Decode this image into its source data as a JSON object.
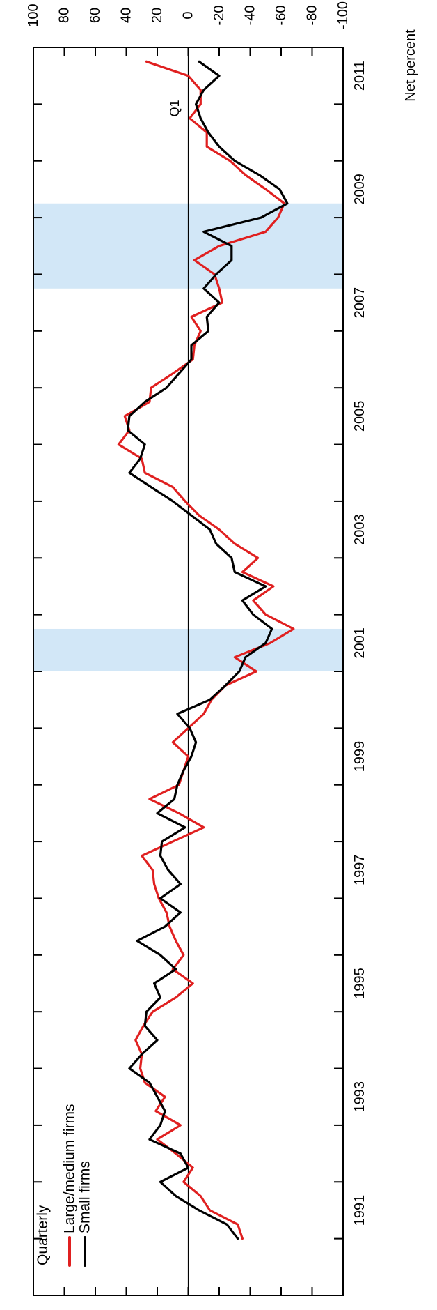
{
  "chart_data": {
    "type": "line",
    "ylabel": "Net percent",
    "ylim": [
      -100,
      100
    ],
    "yticks": [
      100,
      80,
      60,
      40,
      20,
      0,
      -20,
      -40,
      -60,
      -80,
      -100
    ],
    "ytick_labels": [
      "100",
      "80",
      "60",
      "40",
      "20",
      "0",
      "-20",
      "-40",
      "-60",
      "-80",
      "-100"
    ],
    "xlim": [
      1990.0,
      2012.0
    ],
    "xtick_labels": [
      "1991",
      "1993",
      "1995",
      "1997",
      "1999",
      "2001",
      "2003",
      "2005",
      "2007",
      "2009",
      "2011"
    ],
    "legend": {
      "title": "Quarterly",
      "position": "top-left",
      "entries": [
        "Large/medium firms",
        "Small firms"
      ]
    },
    "annotations": [
      {
        "text": "Q1",
        "x": 2011.0,
        "y": -3
      }
    ],
    "recessions": [
      [
        2001.0,
        2001.75
      ],
      [
        2007.75,
        2009.25
      ]
    ],
    "series": [
      {
        "name": "Large/medium firms",
        "color": "#e02020",
        "points": [
          [
            1991.0,
            -35
          ],
          [
            1991.25,
            -32
          ],
          [
            1991.5,
            -14
          ],
          [
            1991.75,
            -8
          ],
          [
            1992.0,
            3
          ],
          [
            1992.25,
            -3
          ],
          [
            1992.5,
            8
          ],
          [
            1992.75,
            20
          ],
          [
            1993.0,
            5
          ],
          [
            1993.25,
            21
          ],
          [
            1993.5,
            15
          ],
          [
            1993.75,
            28
          ],
          [
            1994.0,
            31
          ],
          [
            1994.25,
            30
          ],
          [
            1994.5,
            34
          ],
          [
            1994.75,
            29
          ],
          [
            1995.0,
            23
          ],
          [
            1995.25,
            8
          ],
          [
            1995.5,
            -3
          ],
          [
            1995.75,
            10
          ],
          [
            1996.0,
            3
          ],
          [
            1996.25,
            8
          ],
          [
            1996.5,
            12
          ],
          [
            1996.75,
            14
          ],
          [
            1997.0,
            19
          ],
          [
            1997.25,
            22
          ],
          [
            1997.5,
            23
          ],
          [
            1997.75,
            30
          ],
          [
            1998.0,
            10
          ],
          [
            1998.25,
            -10
          ],
          [
            1998.5,
            6
          ],
          [
            1998.75,
            25
          ],
          [
            1999.0,
            6
          ],
          [
            1999.25,
            3
          ],
          [
            1999.5,
            0
          ],
          [
            1999.75,
            10
          ],
          [
            2000.0,
            0
          ],
          [
            2000.25,
            -10
          ],
          [
            2000.5,
            -15
          ],
          [
            2000.75,
            -24
          ],
          [
            2001.0,
            -44
          ],
          [
            2001.25,
            -30
          ],
          [
            2001.5,
            -53
          ],
          [
            2001.75,
            -68
          ],
          [
            2002.0,
            -50
          ],
          [
            2002.25,
            -42
          ],
          [
            2002.5,
            -55
          ],
          [
            2002.75,
            -35
          ],
          [
            2003.0,
            -45
          ],
          [
            2003.25,
            -30
          ],
          [
            2003.5,
            -20
          ],
          [
            2003.75,
            -7
          ],
          [
            2004.0,
            2
          ],
          [
            2004.25,
            10
          ],
          [
            2004.5,
            28
          ],
          [
            2004.75,
            30
          ],
          [
            2005.0,
            45
          ],
          [
            2005.25,
            38
          ],
          [
            2005.5,
            41
          ],
          [
            2005.75,
            25
          ],
          [
            2006.0,
            24
          ],
          [
            2006.25,
            10
          ],
          [
            2006.5,
            -3
          ],
          [
            2006.75,
            -4
          ],
          [
            2007.0,
            -8
          ],
          [
            2007.25,
            -2
          ],
          [
            2007.5,
            -22
          ],
          [
            2007.75,
            -20
          ],
          [
            2008.0,
            -17
          ],
          [
            2008.25,
            -4
          ],
          [
            2008.5,
            -20
          ],
          [
            2008.75,
            -50
          ],
          [
            2009.0,
            -58
          ],
          [
            2009.25,
            -62
          ],
          [
            2009.5,
            -50
          ],
          [
            2009.75,
            -37
          ],
          [
            2010.0,
            -27
          ],
          [
            2010.25,
            -12
          ],
          [
            2010.5,
            -12
          ],
          [
            2010.75,
            -1
          ],
          [
            2011.0,
            -8
          ],
          [
            2011.25,
            -8
          ],
          [
            2011.5,
            0
          ],
          [
            2011.75,
            27
          ]
        ]
      },
      {
        "name": "Small firms",
        "color": "#000000",
        "points": [
          [
            1991.0,
            -32
          ],
          [
            1991.25,
            -25
          ],
          [
            1991.5,
            -7
          ],
          [
            1991.75,
            8
          ],
          [
            1992.0,
            18
          ],
          [
            1992.25,
            0
          ],
          [
            1992.5,
            5
          ],
          [
            1992.75,
            25
          ],
          [
            1993.0,
            18
          ],
          [
            1993.25,
            15
          ],
          [
            1993.5,
            20
          ],
          [
            1993.75,
            25
          ],
          [
            1994.0,
            38
          ],
          [
            1994.25,
            30
          ],
          [
            1994.5,
            20
          ],
          [
            1994.75,
            28
          ],
          [
            1995.0,
            27
          ],
          [
            1995.25,
            18
          ],
          [
            1995.5,
            22
          ],
          [
            1995.75,
            8
          ],
          [
            1996.0,
            18
          ],
          [
            1996.25,
            33
          ],
          [
            1996.5,
            15
          ],
          [
            1996.75,
            5
          ],
          [
            1997.0,
            18
          ],
          [
            1997.25,
            5
          ],
          [
            1997.5,
            13
          ],
          [
            1997.75,
            18
          ],
          [
            1998.0,
            17
          ],
          [
            1998.25,
            2
          ],
          [
            1998.5,
            20
          ],
          [
            1998.75,
            9
          ],
          [
            1999.0,
            7
          ],
          [
            1999.25,
            3
          ],
          [
            1999.5,
            -2
          ],
          [
            1999.75,
            -5
          ],
          [
            2000.0,
            -1
          ],
          [
            2000.25,
            7
          ],
          [
            2000.5,
            -14
          ],
          [
            2000.75,
            -24
          ],
          [
            2001.0,
            -33
          ],
          [
            2001.25,
            -37
          ],
          [
            2001.5,
            -50
          ],
          [
            2001.75,
            -54
          ],
          [
            2002.0,
            -42
          ],
          [
            2002.25,
            -35
          ],
          [
            2002.5,
            -50
          ],
          [
            2002.75,
            -30
          ],
          [
            2003.0,
            -28
          ],
          [
            2003.25,
            -18
          ],
          [
            2003.5,
            -14
          ],
          [
            2003.75,
            -2
          ],
          [
            2004.0,
            10
          ],
          [
            2004.25,
            24
          ],
          [
            2004.5,
            38
          ],
          [
            2004.75,
            31
          ],
          [
            2005.0,
            28
          ],
          [
            2005.25,
            39
          ],
          [
            2005.5,
            38
          ],
          [
            2005.75,
            28
          ],
          [
            2006.0,
            14
          ],
          [
            2006.25,
            6
          ],
          [
            2006.5,
            -2
          ],
          [
            2006.75,
            -2
          ],
          [
            2007.0,
            -13
          ],
          [
            2007.25,
            -12
          ],
          [
            2007.5,
            -20
          ],
          [
            2007.75,
            -10
          ],
          [
            2008.0,
            -18
          ],
          [
            2008.25,
            -28
          ],
          [
            2008.5,
            -28
          ],
          [
            2008.75,
            -10
          ],
          [
            2009.0,
            -47
          ],
          [
            2009.25,
            -64
          ],
          [
            2009.5,
            -59
          ],
          [
            2009.75,
            -46
          ],
          [
            2010.0,
            -30
          ],
          [
            2010.25,
            -20
          ],
          [
            2010.5,
            -13
          ],
          [
            2010.75,
            -8
          ],
          [
            2011.0,
            -5
          ],
          [
            2011.25,
            -10
          ],
          [
            2011.5,
            -20
          ],
          [
            2011.75,
            -7
          ]
        ]
      }
    ]
  }
}
